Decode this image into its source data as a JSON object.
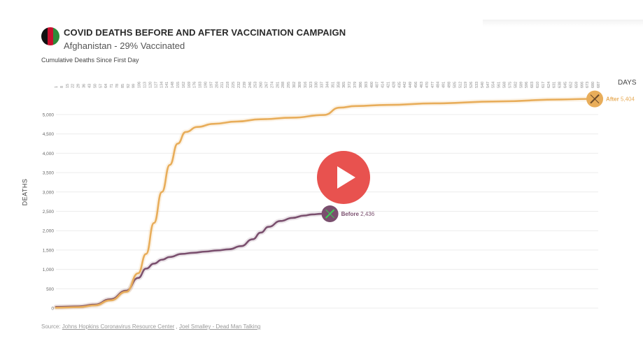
{
  "header": {
    "title": "COVID DEATHS BEFORE AND AFTER VACCINATION CAMPAIGN",
    "subtitle": "Afghanistan - 29% Vaccinated",
    "caption": "Cumulative Deaths Since First Day"
  },
  "flag_colors": [
    "#111111",
    "#c8102e",
    "#2e8b3a"
  ],
  "colors": {
    "before": "#7a4f6e",
    "after": "#e8ad5a",
    "play": "#e8524f"
  },
  "source": {
    "prefix": "Source: ",
    "link1": "Johns Hopkins Coronavirus Resource Center",
    "sep": " , ",
    "link2": "Joel Smalley - Dead Man Talking"
  },
  "video": {
    "play_icon": "play-icon"
  },
  "chart_data": {
    "type": "line",
    "title": "COVID DEATHS BEFORE AND AFTER VACCINATION CAMPAIGN",
    "subtitle": "Afghanistan - 29% Vaccinated",
    "xlabel": "DAYS",
    "ylabel": "DEATHS",
    "ylim": [
      0,
      5500
    ],
    "xlim": [
      1,
      687
    ],
    "grid": true,
    "yticks": [
      "0",
      "500",
      "1,000",
      "1,500",
      "2,000",
      "2,500",
      "3,000",
      "3,500",
      "4,000",
      "4,500",
      "5,000"
    ],
    "ytick_values": [
      0,
      500,
      1000,
      1500,
      2000,
      2500,
      3000,
      3500,
      4000,
      4500,
      5000
    ],
    "xticks": [
      "1",
      "8",
      "15",
      "22",
      "29",
      "36",
      "43",
      "50",
      "57",
      "64",
      "71",
      "78",
      "85",
      "92",
      "99",
      "106",
      "113",
      "120",
      "127",
      "134",
      "141",
      "148",
      "155",
      "162",
      "169",
      "176",
      "183",
      "190",
      "197",
      "204",
      "211",
      "218",
      "225",
      "232",
      "239",
      "246",
      "253",
      "260",
      "267",
      "274",
      "281",
      "288",
      "295",
      "302",
      "309",
      "316",
      "323",
      "330",
      "337",
      "344",
      "351",
      "358",
      "365",
      "372",
      "379",
      "386",
      "393",
      "400",
      "407",
      "414",
      "421",
      "428",
      "435",
      "442",
      "449",
      "456",
      "463",
      "470",
      "477",
      "484",
      "491",
      "498",
      "505",
      "512",
      "519",
      "526",
      "533",
      "540",
      "547",
      "554",
      "561",
      "568",
      "575",
      "582",
      "589",
      "596",
      "603",
      "610",
      "617",
      "624",
      "631",
      "638",
      "645",
      "652",
      "659",
      "666",
      "673",
      "680",
      "687"
    ],
    "series": [
      {
        "name": "Before",
        "end_label": "Before",
        "end_value": "2,436",
        "x": [
          1,
          30,
          50,
          70,
          90,
          105,
          115,
          125,
          135,
          145,
          160,
          175,
          190,
          205,
          220,
          235,
          250,
          260,
          270,
          285,
          300,
          315,
          325,
          337
        ],
        "y": [
          30,
          45,
          90,
          230,
          450,
          780,
          1020,
          1150,
          1250,
          1320,
          1400,
          1430,
          1460,
          1490,
          1520,
          1600,
          1780,
          1950,
          2100,
          2250,
          2330,
          2390,
          2420,
          2436
        ]
      },
      {
        "name": "After",
        "end_label": "After",
        "end_value": "5,404",
        "x": [
          1,
          30,
          50,
          70,
          90,
          105,
          115,
          125,
          135,
          145,
          155,
          165,
          180,
          200,
          230,
          260,
          300,
          340,
          360,
          380,
          420,
          480,
          560,
          640,
          672
        ],
        "y": [
          10,
          25,
          70,
          200,
          420,
          900,
          1400,
          2200,
          3000,
          3700,
          4250,
          4550,
          4680,
          4760,
          4820,
          4880,
          4920,
          4990,
          5180,
          5220,
          5250,
          5290,
          5340,
          5390,
          5404
        ]
      }
    ]
  }
}
